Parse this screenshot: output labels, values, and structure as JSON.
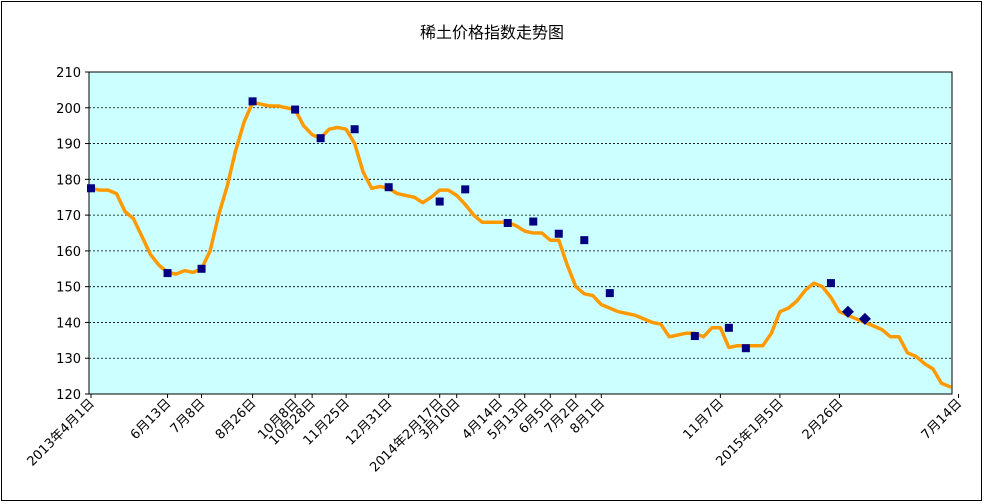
{
  "chart_data": {
    "type": "line",
    "title": "稀土价格指数走势图",
    "xlabel": "",
    "ylabel": "",
    "ylim": [
      120,
      210
    ],
    "yticks": [
      120,
      130,
      140,
      150,
      160,
      170,
      180,
      190,
      200,
      210
    ],
    "grid": true,
    "legend": "none",
    "colors": {
      "line": "#FF9900",
      "marker": "#000080",
      "plot_bg": "#CCFFFF"
    },
    "x_tick_labels": [
      {
        "i": 0,
        "label": "2013年4月1日"
      },
      {
        "i": 9,
        "label": "6月13日"
      },
      {
        "i": 13,
        "label": "7月8日"
      },
      {
        "i": 19,
        "label": "8月26日"
      },
      {
        "i": 24,
        "label": "10月8日"
      },
      {
        "i": 26,
        "label": "10月28日"
      },
      {
        "i": 30,
        "label": "11月25日"
      },
      {
        "i": 35,
        "label": "12月31日"
      },
      {
        "i": 41,
        "label": "2014年2月17日"
      },
      {
        "i": 43,
        "label": "3月10日"
      },
      {
        "i": 48,
        "label": "4月14日"
      },
      {
        "i": 51,
        "label": "5月13日"
      },
      {
        "i": 54,
        "label": "6月5日"
      },
      {
        "i": 57,
        "label": "7月2日"
      },
      {
        "i": 60,
        "label": "8月1日"
      },
      {
        "i": 74,
        "label": "11月7日"
      },
      {
        "i": 81,
        "label": "2015年1月5日"
      },
      {
        "i": 88,
        "label": "2月26日"
      },
      {
        "i": 102,
        "label": "7月14日"
      }
    ],
    "series": [
      {
        "values": [
          177.5,
          177,
          177,
          176,
          171,
          169,
          164,
          159,
          156,
          154,
          153.5,
          154.5,
          154,
          155,
          160,
          170,
          178,
          188,
          196,
          201.5,
          201,
          200.5,
          200.5,
          200,
          199.5,
          195,
          192.5,
          191.5,
          194,
          194.5,
          194,
          190,
          182,
          177.5,
          178,
          177.5,
          176,
          175.5,
          175,
          173.5,
          175,
          177,
          177,
          175.5,
          173,
          170,
          168,
          168,
          168,
          168,
          167,
          165.5,
          165,
          165,
          163,
          163,
          156,
          150,
          148,
          147.5,
          145,
          144,
          143,
          142.5,
          142,
          141,
          140,
          139.5,
          136,
          136.5,
          137,
          137,
          136,
          138.5,
          138.5,
          133,
          133.5,
          133.5,
          133.5,
          133.5,
          137,
          143,
          144,
          146,
          149,
          151,
          150,
          147,
          143,
          142,
          141,
          140,
          139,
          138,
          136,
          136,
          131.5,
          130.5,
          128.5,
          127,
          123,
          122
        ]
      }
    ],
    "markers": [
      {
        "i": 0,
        "y": 177.5,
        "shape": "square"
      },
      {
        "i": 9,
        "y": 153.8,
        "shape": "square"
      },
      {
        "i": 13,
        "y": 155,
        "shape": "square"
      },
      {
        "i": 19,
        "y": 201.8,
        "shape": "square"
      },
      {
        "i": 24,
        "y": 199.5,
        "shape": "square"
      },
      {
        "i": 27,
        "y": 191.5,
        "shape": "square"
      },
      {
        "i": 31,
        "y": 194,
        "shape": "square"
      },
      {
        "i": 35,
        "y": 177.8,
        "shape": "square"
      },
      {
        "i": 41,
        "y": 173.8,
        "shape": "square"
      },
      {
        "i": 44,
        "y": 177.2,
        "shape": "square"
      },
      {
        "i": 49,
        "y": 167.8,
        "shape": "square"
      },
      {
        "i": 52,
        "y": 168.2,
        "shape": "square"
      },
      {
        "i": 55,
        "y": 164.8,
        "shape": "square"
      },
      {
        "i": 58,
        "y": 163,
        "shape": "square"
      },
      {
        "i": 61,
        "y": 148.2,
        "shape": "square"
      },
      {
        "i": 71,
        "y": 136.2,
        "shape": "square"
      },
      {
        "i": 75,
        "y": 138.5,
        "shape": "square"
      },
      {
        "i": 77,
        "y": 132.8,
        "shape": "square"
      },
      {
        "i": 87,
        "y": 151,
        "shape": "square"
      },
      {
        "i": 89,
        "y": 143,
        "shape": "diamond"
      },
      {
        "i": 91,
        "y": 141,
        "shape": "diamond"
      }
    ]
  }
}
